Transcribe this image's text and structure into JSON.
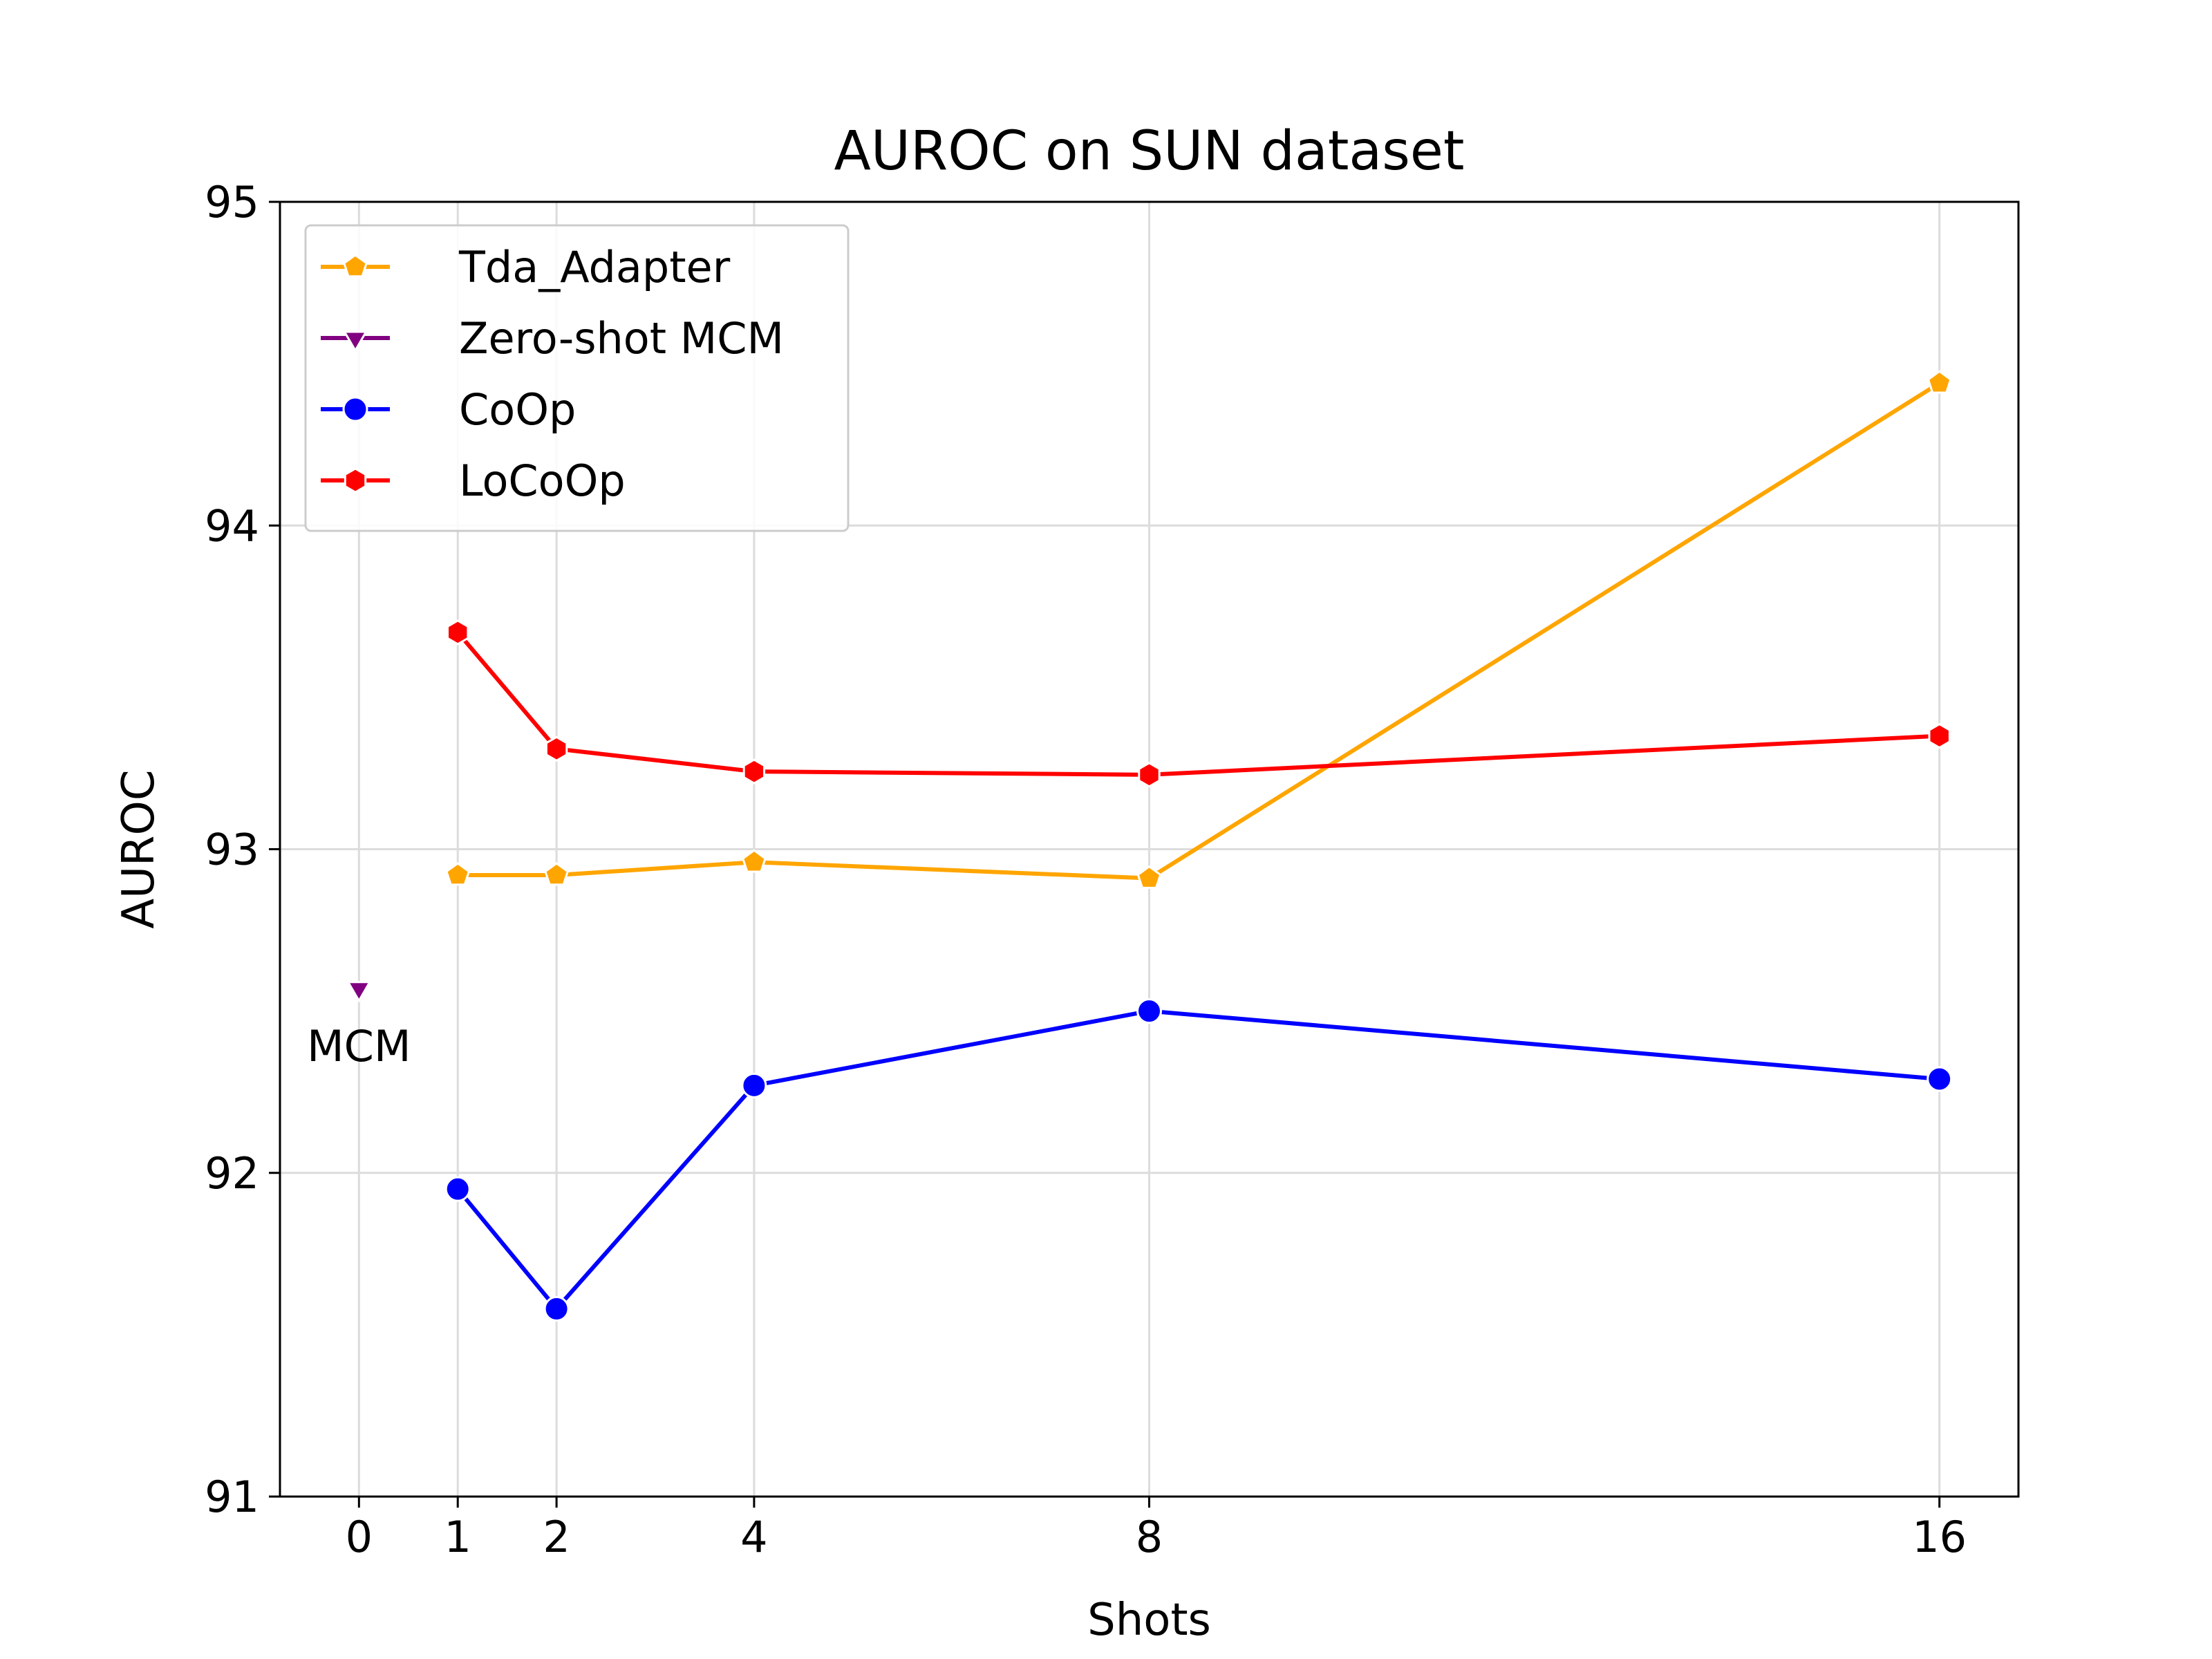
{
  "chart_data": {
    "type": "line",
    "title": "AUROC on SUN dataset",
    "xlabel": "Shots",
    "ylabel": "AUROC",
    "xlim": [
      -0.8,
      16.8
    ],
    "ylim": [
      91,
      95
    ],
    "xticks": [
      0,
      1,
      2,
      4,
      8,
      16
    ],
    "yticks": [
      91,
      92,
      93,
      94,
      95
    ],
    "grid": true,
    "legend_position": "upper-left",
    "series": [
      {
        "name": "Tda_Adapter",
        "color": "#FFA500",
        "marker": "pentagon",
        "x": [
          1,
          2,
          4,
          8,
          16
        ],
        "y": [
          92.92,
          92.92,
          92.96,
          92.91,
          94.44
        ]
      },
      {
        "name": "Zero-shot MCM",
        "color": "#800080",
        "marker": "triangle-down",
        "x": [
          0
        ],
        "y": [
          92.57
        ]
      },
      {
        "name": "CoOp",
        "color": "#0000FF",
        "marker": "circle",
        "x": [
          1,
          2,
          4,
          8,
          16
        ],
        "y": [
          91.95,
          91.58,
          92.27,
          92.5,
          92.29
        ]
      },
      {
        "name": "LoCoOp",
        "color": "#FF0000",
        "marker": "hexagon",
        "x": [
          1,
          2,
          4,
          8,
          16
        ],
        "y": [
          93.67,
          93.31,
          93.24,
          93.23,
          93.35
        ]
      }
    ],
    "annotations": [
      {
        "text": "MCM",
        "x": 0,
        "y": 92.57
      }
    ]
  }
}
